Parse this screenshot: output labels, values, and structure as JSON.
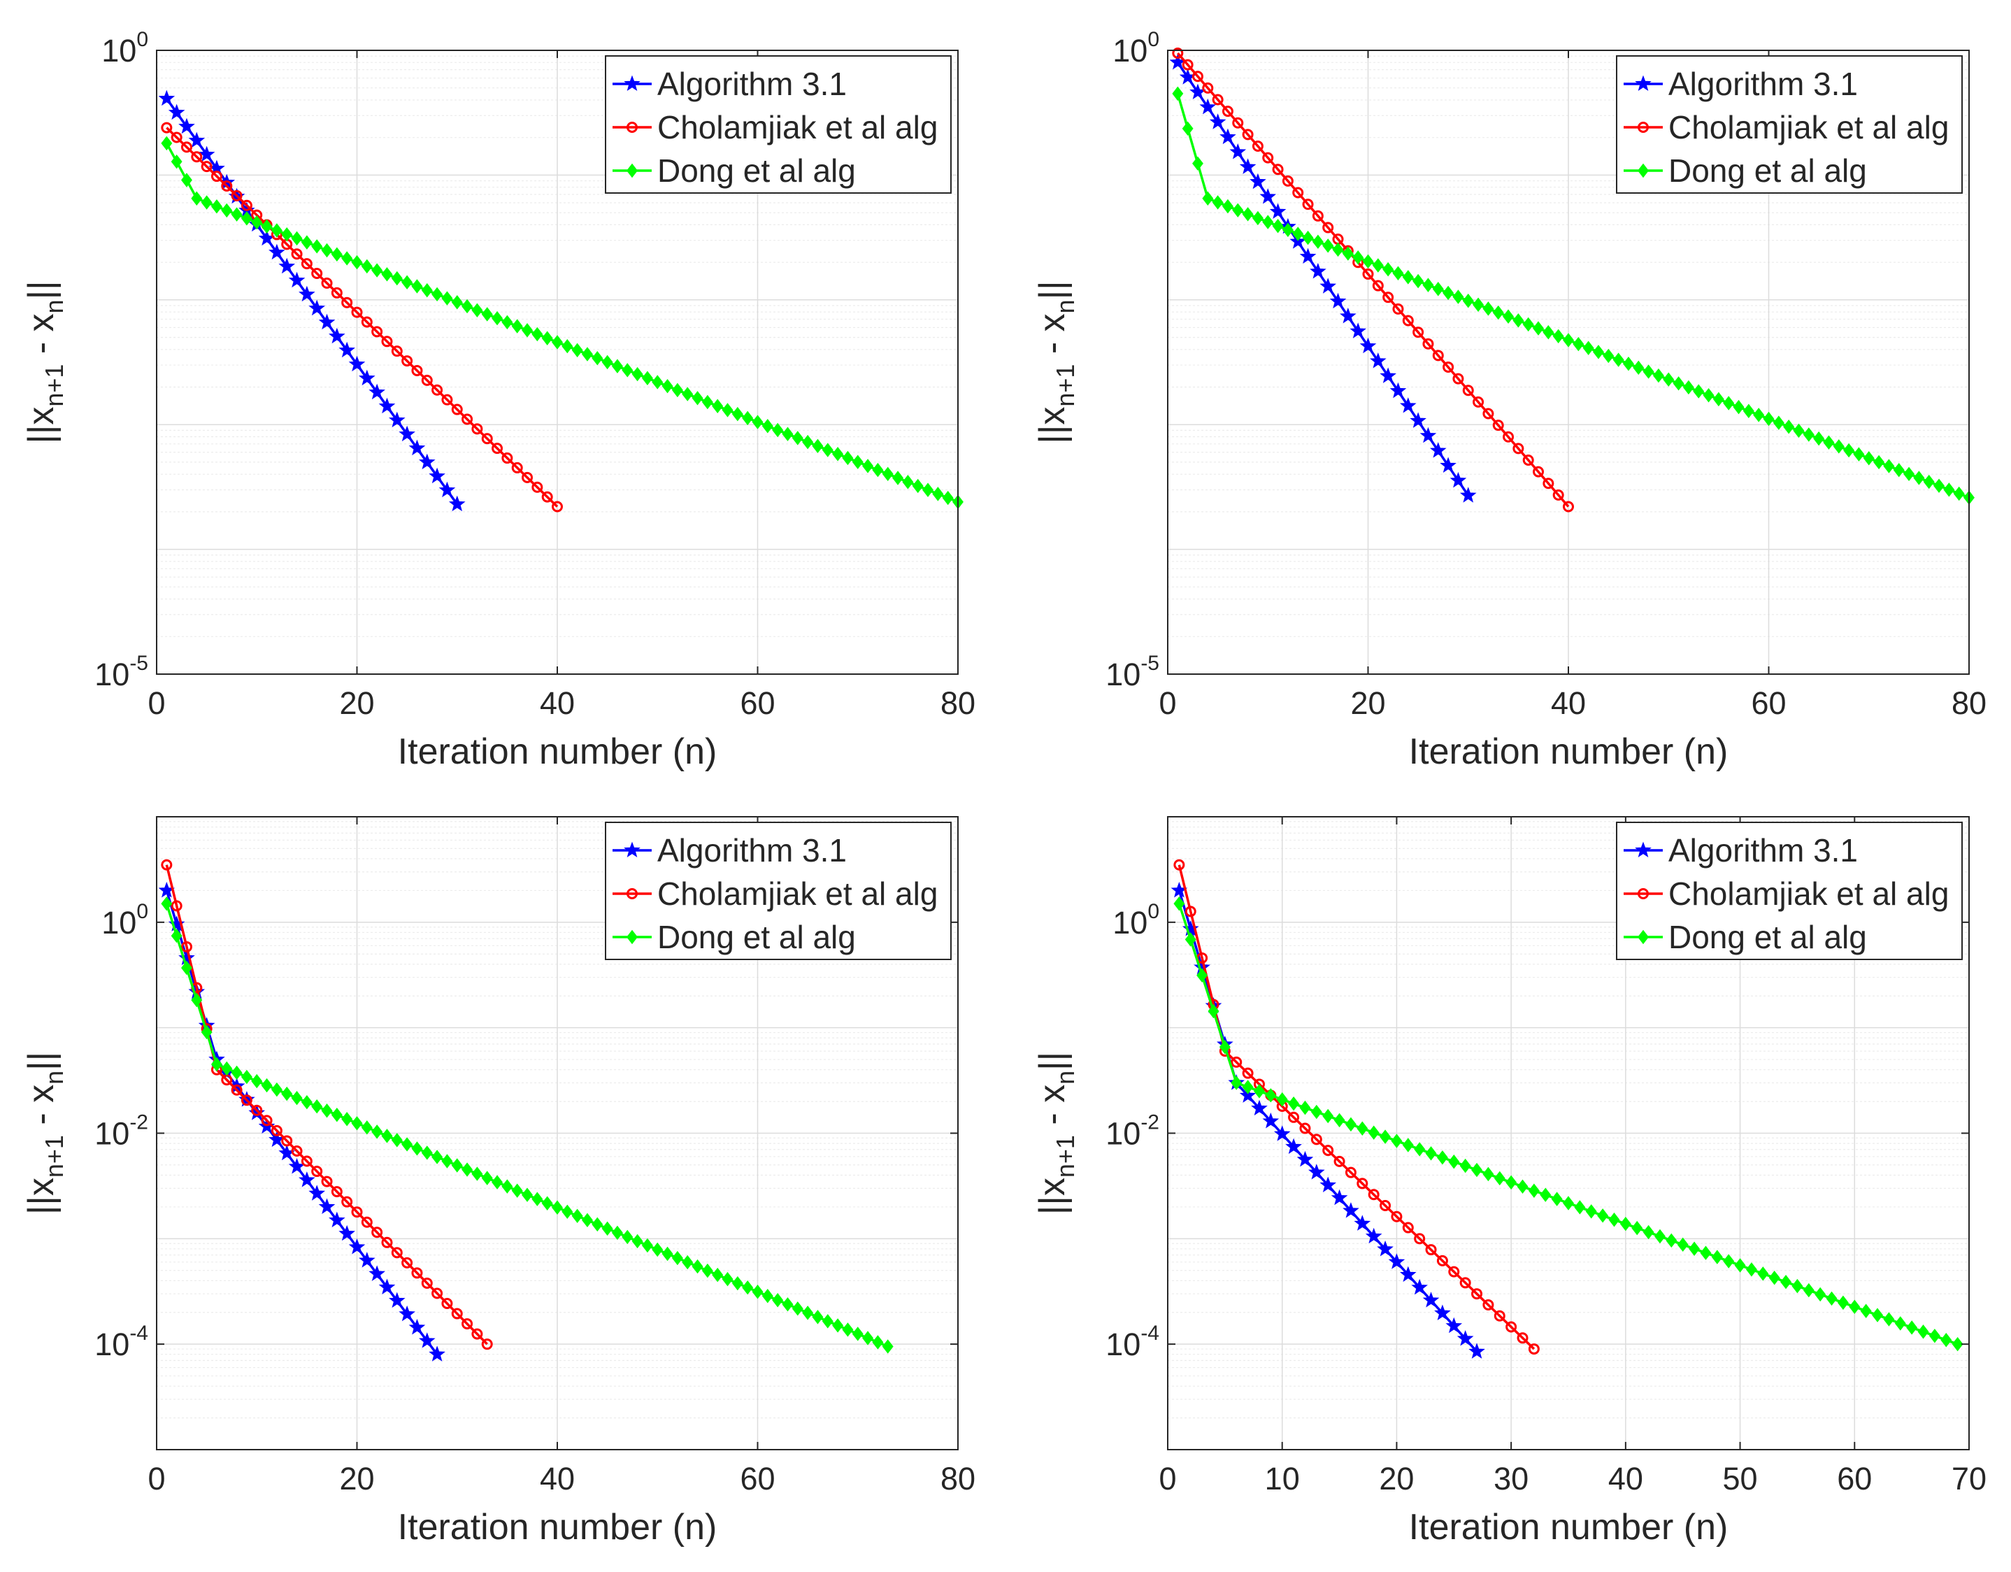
{
  "chart_data": [
    {
      "type": "line",
      "position": "top-left",
      "xlabel": "Iteration number (n)",
      "ylabel": "||x_{n+1} - x_n||",
      "yscale": "log",
      "xlim": [
        0,
        80
      ],
      "ylim": [
        1e-05,
        1
      ],
      "xticks": [
        "0",
        "20",
        "40",
        "60",
        "80"
      ],
      "yticks": [
        {
          "base": "10",
          "exp": "0"
        },
        {
          "base": "10",
          "exp": "-5"
        }
      ],
      "legend": "top-right",
      "series": [
        {
          "name": "Algorithm 3.1",
          "color": "#0000ff",
          "marker": "star",
          "n": 30,
          "y_start": 0.41,
          "y_end": 0.00023
        },
        {
          "name": "Cholamjiak et al alg",
          "color": "#ff0000",
          "marker": "circle",
          "n": 40,
          "y_start": 0.24,
          "y_end": 0.00022
        },
        {
          "name": "Dong et al alg",
          "color": "#00ff00",
          "marker": "diamond",
          "n": 80,
          "y_start": 0.18,
          "y_end": 0.00024,
          "knee_n": 4,
          "knee_y": 0.065
        }
      ]
    },
    {
      "type": "line",
      "position": "top-right",
      "xlabel": "Iteration number (n)",
      "ylabel": "||x_{n+1} - x_n||",
      "yscale": "log",
      "xlim": [
        0,
        80
      ],
      "ylim": [
        1e-05,
        1
      ],
      "xticks": [
        "0",
        "20",
        "40",
        "60",
        "80"
      ],
      "yticks": [
        {
          "base": "10",
          "exp": "0"
        },
        {
          "base": "10",
          "exp": "-5"
        }
      ],
      "legend": "top-right",
      "series": [
        {
          "name": "Algorithm 3.1",
          "color": "#0000ff",
          "marker": "star",
          "n": 30,
          "y_start": 0.8,
          "y_end": 0.00027
        },
        {
          "name": "Cholamjiak et al alg",
          "color": "#ff0000",
          "marker": "circle",
          "n": 40,
          "y_start": 0.95,
          "y_end": 0.00022
        },
        {
          "name": "Dong et al alg",
          "color": "#00ff00",
          "marker": "diamond",
          "n": 80,
          "y_start": 0.45,
          "y_end": 0.00026,
          "knee_n": 4,
          "knee_y": 0.065
        }
      ]
    },
    {
      "type": "line",
      "position": "bottom-left",
      "xlabel": "Iteration number (n)",
      "ylabel": "||x_{n+1} - x_n||",
      "yscale": "log",
      "xlim": [
        0,
        80
      ],
      "ylim": [
        1e-05,
        10
      ],
      "xticks": [
        "0",
        "20",
        "40",
        "60",
        "80"
      ],
      "yticks": [
        {
          "base": "10",
          "exp": "0"
        },
        {
          "base": "10",
          "exp": "-2"
        },
        {
          "base": "10",
          "exp": "-4"
        }
      ],
      "legend": "top-right",
      "series": [
        {
          "name": "Algorithm 3.1",
          "color": "#0000ff",
          "marker": "star",
          "n": 28,
          "y_start": 2.0,
          "y_end": 8e-05,
          "knee_n": 6,
          "knee_y": 0.05
        },
        {
          "name": "Cholamjiak et al alg",
          "color": "#ff0000",
          "marker": "circle",
          "n": 33,
          "y_start": 3.5,
          "y_end": 0.0001,
          "knee_n": 6,
          "knee_y": 0.04
        },
        {
          "name": "Dong et al alg",
          "color": "#00ff00",
          "marker": "diamond",
          "n": 73,
          "y_start": 1.5,
          "y_end": 9.5e-05,
          "knee_n": 6,
          "knee_y": 0.045
        }
      ]
    },
    {
      "type": "line",
      "position": "bottom-right",
      "xlabel": "Iteration number (n)",
      "ylabel": "||x_{n+1} - x_n||",
      "yscale": "log",
      "xlim": [
        0,
        70
      ],
      "ylim": [
        1e-05,
        10
      ],
      "xticks": [
        "0",
        "10",
        "20",
        "30",
        "40",
        "50",
        "60",
        "70"
      ],
      "yticks": [
        {
          "base": "10",
          "exp": "0"
        },
        {
          "base": "10",
          "exp": "-2"
        },
        {
          "base": "10",
          "exp": "-4"
        }
      ],
      "legend": "top-right",
      "series": [
        {
          "name": "Algorithm 3.1",
          "color": "#0000ff",
          "marker": "star",
          "n": 27,
          "y_start": 2.0,
          "y_end": 8.5e-05,
          "knee_n": 6,
          "knee_y": 0.03
        },
        {
          "name": "Cholamjiak et al alg",
          "color": "#ff0000",
          "marker": "circle",
          "n": 32,
          "y_start": 3.5,
          "y_end": 9e-05,
          "knee_n": 5,
          "knee_y": 0.06
        },
        {
          "name": "Dong et al alg",
          "color": "#00ff00",
          "marker": "diamond",
          "n": 69,
          "y_start": 1.5,
          "y_end": 0.0001,
          "knee_n": 6,
          "knee_y": 0.03
        }
      ]
    }
  ]
}
